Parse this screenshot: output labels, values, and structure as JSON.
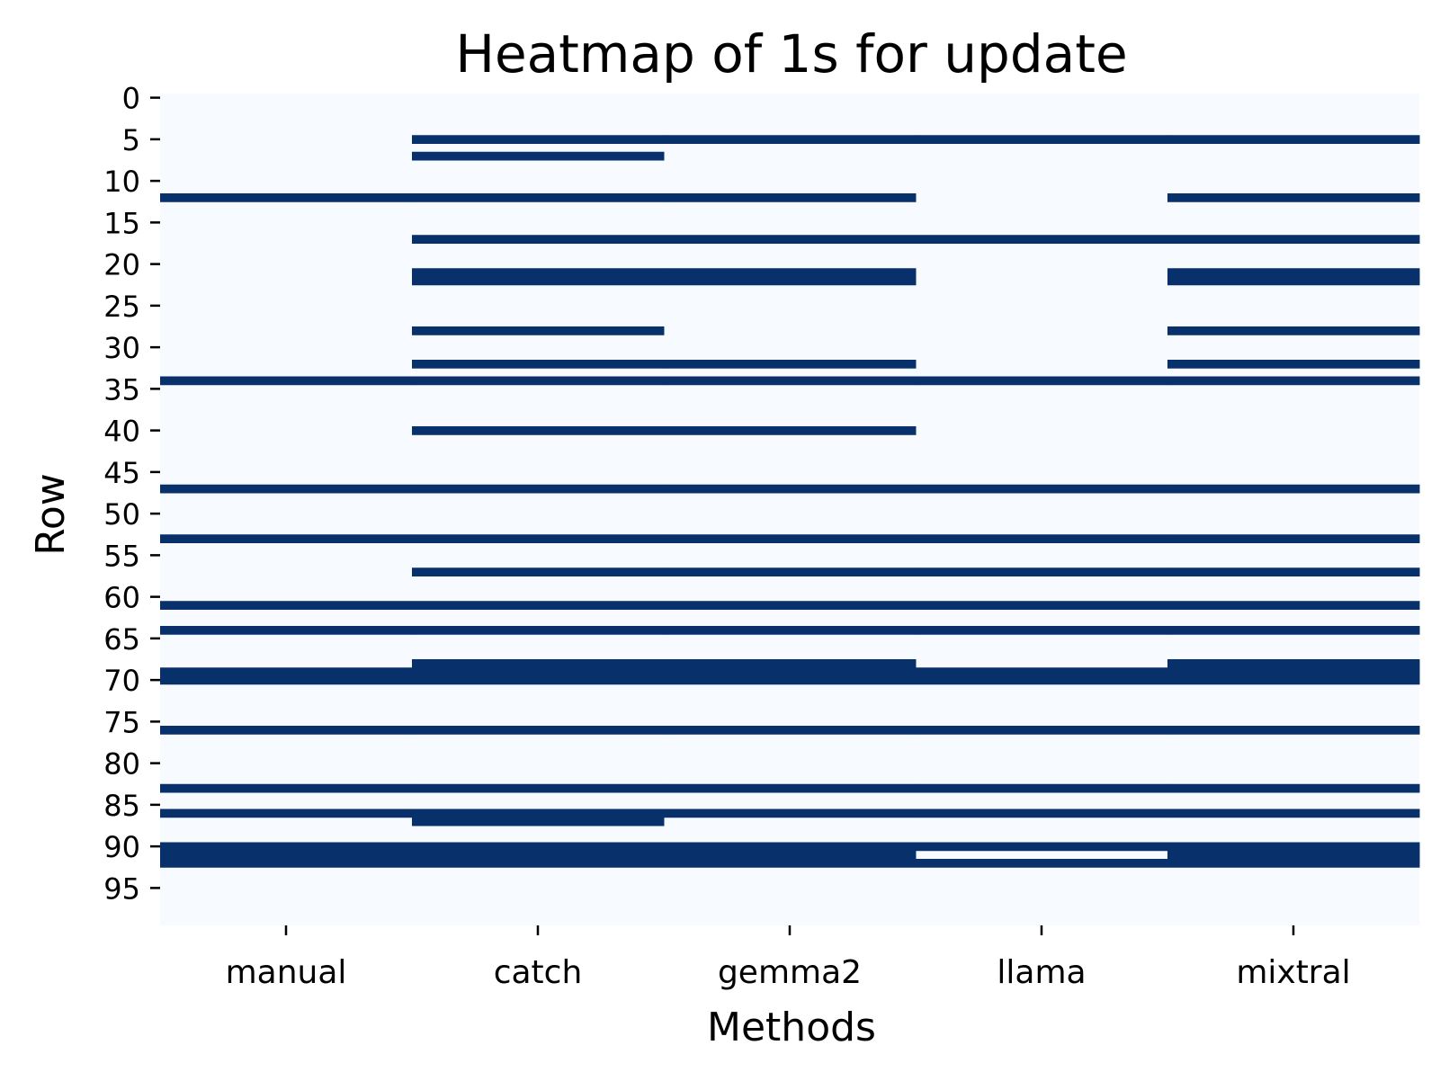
{
  "chart_data": {
    "type": "heatmap",
    "title": "Heatmap of 1s for update",
    "xlabel": "Methods",
    "ylabel": "Row",
    "columns": [
      "manual",
      "catch",
      "gemma2",
      "llama",
      "mixtral"
    ],
    "n_rows": 100,
    "y_ticks": [
      0,
      5,
      10,
      15,
      20,
      25,
      30,
      35,
      40,
      45,
      50,
      55,
      60,
      65,
      70,
      75,
      80,
      85,
      90,
      95
    ],
    "value_colors": {
      "0": "#f7fbff",
      "1": "#08306b"
    },
    "grid": false,
    "legend": "none",
    "rows_with_value_1": {
      "manual": [
        12,
        34,
        47,
        53,
        61,
        64,
        69,
        70,
        76,
        83,
        86,
        90,
        91,
        92
      ],
      "catch": [
        5,
        7,
        12,
        17,
        21,
        22,
        28,
        32,
        34,
        40,
        47,
        53,
        57,
        61,
        64,
        68,
        69,
        70,
        76,
        83,
        86,
        87,
        90,
        91,
        92
      ],
      "gemma2": [
        5,
        12,
        17,
        21,
        22,
        32,
        34,
        40,
        47,
        53,
        57,
        61,
        64,
        68,
        69,
        70,
        76,
        83,
        86,
        90,
        91,
        92
      ],
      "llama": [
        5,
        17,
        34,
        47,
        53,
        57,
        61,
        64,
        69,
        70,
        76,
        83,
        86,
        90,
        92
      ],
      "mixtral": [
        5,
        12,
        17,
        21,
        22,
        28,
        32,
        34,
        47,
        53,
        57,
        61,
        64,
        68,
        69,
        70,
        76,
        83,
        86,
        90,
        91,
        92
      ]
    }
  }
}
